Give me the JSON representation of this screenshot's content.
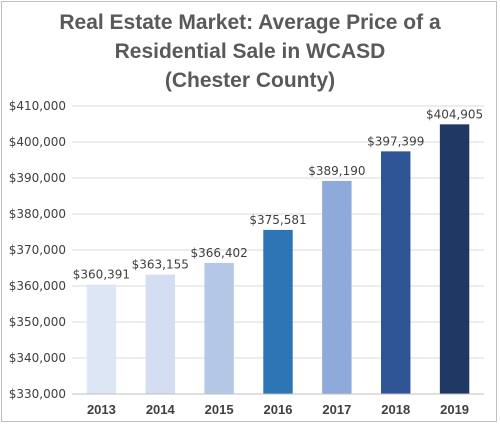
{
  "chart_data": {
    "type": "bar",
    "title_lines": [
      "Real Estate Market: Average Price of a",
      "Residential Sale in WCASD",
      "(Chester County)"
    ],
    "categories": [
      "2013",
      "2014",
      "2015",
      "2016",
      "2017",
      "2018",
      "2019"
    ],
    "values": [
      360391,
      363155,
      366402,
      375581,
      389190,
      397399,
      404905
    ],
    "data_labels": [
      "$360,391",
      "$363,155",
      "$366,402",
      "$375,581",
      "$389,190",
      "$397,399",
      "$404,905"
    ],
    "bar_colors": [
      "#dde6f5",
      "#d3def3",
      "#b4c7e7",
      "#2e75b6",
      "#8eaadb",
      "#2f5597",
      "#203864"
    ],
    "ylim": [
      330000,
      410000
    ],
    "y_ticks": [
      330000,
      340000,
      350000,
      360000,
      370000,
      380000,
      390000,
      400000,
      410000
    ],
    "y_tick_labels": [
      "$330,000",
      "$340,000",
      "$350,000",
      "$360,000",
      "$370,000",
      "$380,000",
      "$390,000",
      "$400,000",
      "$410,000"
    ],
    "grid": true,
    "legend": "none",
    "xlabel": "",
    "ylabel": ""
  }
}
